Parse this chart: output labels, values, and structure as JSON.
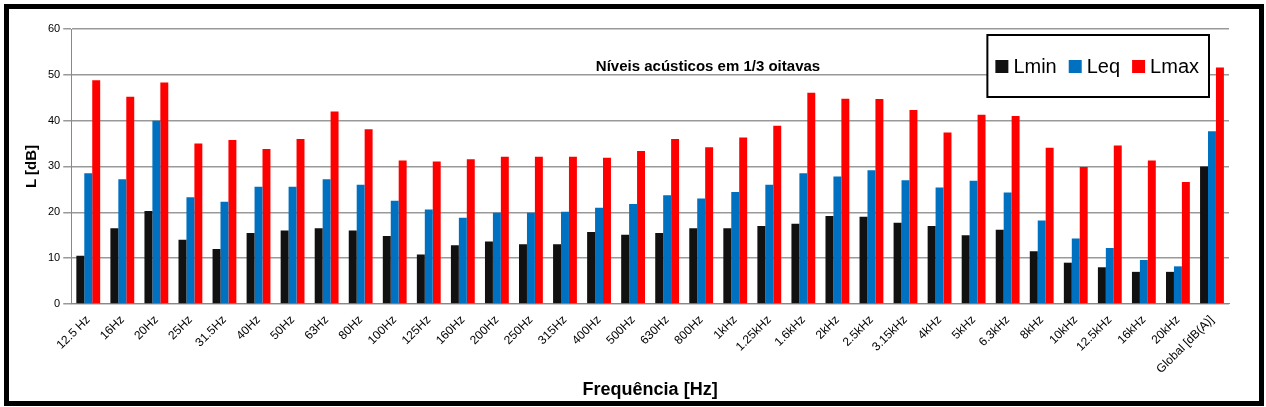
{
  "chart_data": {
    "type": "bar",
    "title": "Níveis acústicos em 1/3 oitavas",
    "xlabel": "Frequência [Hz]",
    "ylabel": "L [dB]",
    "categories": [
      "12.5 Hz",
      "16Hz",
      "20Hz",
      "25Hz",
      "31.5Hz",
      "40Hz",
      "50Hz",
      "63Hz",
      "80Hz",
      "100Hz",
      "125Hz",
      "160Hz",
      "200Hz",
      "250Hz",
      "315Hz",
      "400Hz",
      "500Hz",
      "630Hz",
      "800Hz",
      "1kHz",
      "1.25kHz",
      "1.6kHz",
      "2kHz",
      "2.5kHz",
      "3.15kHz",
      "4kHz",
      "5kHz",
      "6.3kHz",
      "8kHz",
      "10kHz",
      "12.5kHz",
      "16kHz",
      "20kHz",
      "Global [dB(A)]"
    ],
    "series": [
      {
        "name": "Lmin",
        "color": "#111111",
        "values": [
          10.5,
          16.5,
          20.3,
          14,
          12,
          15.5,
          16,
          16.5,
          16,
          14.8,
          10.8,
          12.8,
          13.6,
          13,
          13,
          15.7,
          15.1,
          15.5,
          16.5,
          16.5,
          17,
          17.5,
          19.2,
          19,
          17.7,
          17,
          15,
          16.2,
          11.5,
          9,
          8,
          7,
          7,
          30
        ]
      },
      {
        "name": "Leq",
        "color": "#0070c0",
        "values": [
          28.5,
          27.2,
          40,
          23.3,
          22.3,
          25.6,
          25.6,
          27.2,
          26,
          22.5,
          20.6,
          18.8,
          19.9,
          19.9,
          20.1,
          21,
          21.8,
          23.7,
          23,
          24.4,
          26,
          28.5,
          27.8,
          29.2,
          27,
          25.4,
          26.9,
          24.3,
          18.2,
          14.3,
          12.2,
          9.6,
          8.2,
          37.7
        ]
      },
      {
        "name": "Lmax",
        "color": "#ff0000",
        "values": [
          48.8,
          45.2,
          48.3,
          35,
          35.8,
          33.8,
          36,
          42,
          38.1,
          31.3,
          31.1,
          31.6,
          32.1,
          32.1,
          32.1,
          31.9,
          33.4,
          36,
          34.2,
          36.3,
          38.9,
          46.1,
          44.8,
          44.7,
          42.3,
          37.4,
          41.3,
          41,
          34.1,
          29.9,
          34.6,
          31.3,
          26.6,
          51.6
        ]
      }
    ],
    "ylim": [
      0,
      60
    ],
    "yticks": [
      0,
      10,
      20,
      30,
      40,
      50,
      60
    ],
    "grid": "y",
    "legend": "top right"
  }
}
